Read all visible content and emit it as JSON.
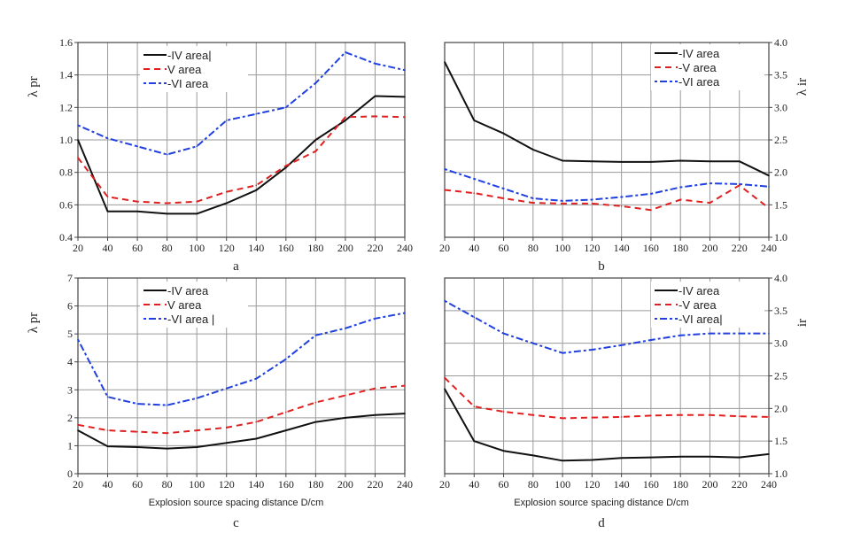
{
  "figure": {
    "x_axis_label": "Explosion source spacing distance D/cm"
  },
  "colors": {
    "IV": "#111111",
    "V": "#e02020",
    "VI": "#2040e0",
    "grid": "#9a9a9a",
    "frame": "#444444"
  },
  "chart_data": [
    {
      "id": "a",
      "type": "line",
      "panel_label": "a",
      "ylabel": "λ pr",
      "y_side": "left",
      "xlim": [
        20,
        240
      ],
      "ylim": [
        0.4,
        1.6
      ],
      "x_ticks": [
        "20",
        "40",
        "60",
        "80",
        "100",
        "120",
        "140",
        "160",
        "180",
        "200",
        "220",
        "240"
      ],
      "y_ticks": [
        "0.4",
        "0.6",
        "0.8",
        "1.0",
        "1.2",
        "1.4",
        "1.6"
      ],
      "grid": true,
      "show_xlabel": false,
      "legend_position": "top-center",
      "x": [
        20,
        40,
        60,
        80,
        100,
        120,
        140,
        160,
        180,
        200,
        220,
        240
      ],
      "series": [
        {
          "key": "IV",
          "name": "-IV area|",
          "style": "solid",
          "values": [
            1.0,
            0.56,
            0.56,
            0.545,
            0.545,
            0.61,
            0.69,
            0.83,
            1.0,
            1.12,
            1.27,
            1.265
          ]
        },
        {
          "key": "V",
          "name": "V area",
          "style": "dashed",
          "values": [
            0.89,
            0.65,
            0.62,
            0.61,
            0.62,
            0.68,
            0.72,
            0.84,
            0.93,
            1.14,
            1.145,
            1.14
          ]
        },
        {
          "key": "VI",
          "name": "-VI area",
          "style": "dashdot",
          "values": [
            1.09,
            1.01,
            0.96,
            0.91,
            0.96,
            1.12,
            1.16,
            1.2,
            1.35,
            1.54,
            1.47,
            1.43
          ]
        }
      ]
    },
    {
      "id": "b",
      "type": "line",
      "panel_label": "b",
      "ylabel": "λ ir",
      "y_side": "right",
      "xlim": [
        20,
        240
      ],
      "ylim": [
        1.0,
        4.0
      ],
      "x_ticks": [
        "20",
        "40",
        "60",
        "80",
        "100",
        "120",
        "140",
        "160",
        "180",
        "200",
        "220",
        "240"
      ],
      "y_ticks": [
        "1.0",
        "1.5",
        "2.0",
        "2.5",
        "3.0",
        "3.5",
        "4.0"
      ],
      "grid": true,
      "show_xlabel": false,
      "legend_position": "top-right",
      "x": [
        20,
        40,
        60,
        80,
        100,
        120,
        140,
        160,
        180,
        200,
        220,
        240
      ],
      "series": [
        {
          "key": "IV",
          "name": "-IV area",
          "style": "solid",
          "values": [
            3.7,
            2.8,
            2.6,
            2.35,
            2.18,
            2.17,
            2.16,
            2.16,
            2.18,
            2.17,
            2.17,
            1.95
          ]
        },
        {
          "key": "V",
          "name": "-V area",
          "style": "dashed",
          "values": [
            1.73,
            1.68,
            1.6,
            1.53,
            1.52,
            1.52,
            1.48,
            1.42,
            1.58,
            1.53,
            1.8,
            1.45
          ]
        },
        {
          "key": "VI",
          "name": "-VI area",
          "style": "dashdot",
          "values": [
            2.05,
            1.9,
            1.75,
            1.6,
            1.56,
            1.58,
            1.62,
            1.67,
            1.77,
            1.83,
            1.82,
            1.78
          ]
        }
      ]
    },
    {
      "id": "c",
      "type": "line",
      "panel_label": "c",
      "ylabel": "λ pr",
      "y_side": "left",
      "xlim": [
        20,
        240
      ],
      "ylim": [
        0,
        7
      ],
      "x_ticks": [
        "20",
        "40",
        "60",
        "80",
        "100",
        "120",
        "140",
        "160",
        "180",
        "200",
        "220",
        "240"
      ],
      "y_ticks": [
        "0",
        "1",
        "2",
        "3",
        "4",
        "5",
        "6",
        "7"
      ],
      "grid": true,
      "show_xlabel": true,
      "legend_position": "top-center",
      "x": [
        20,
        40,
        60,
        80,
        100,
        120,
        140,
        160,
        180,
        200,
        220,
        240
      ],
      "series": [
        {
          "key": "IV",
          "name": "-IV area",
          "style": "solid",
          "values": [
            1.55,
            0.98,
            0.95,
            0.9,
            0.95,
            1.1,
            1.25,
            1.55,
            1.85,
            2.0,
            2.1,
            2.15
          ]
        },
        {
          "key": "V",
          "name": "V area",
          "style": "dashed",
          "values": [
            1.75,
            1.55,
            1.5,
            1.45,
            1.55,
            1.65,
            1.85,
            2.2,
            2.55,
            2.8,
            3.05,
            3.15
          ]
        },
        {
          "key": "VI",
          "name": "-VI area |",
          "style": "dashdot",
          "values": [
            4.8,
            2.75,
            2.5,
            2.45,
            2.7,
            3.05,
            3.4,
            4.1,
            4.95,
            5.2,
            5.55,
            5.75
          ]
        }
      ]
    },
    {
      "id": "d",
      "type": "line",
      "panel_label": "d",
      "ylabel": "ir",
      "y_side": "right",
      "xlim": [
        20,
        240
      ],
      "ylim": [
        1.0,
        4.0
      ],
      "x_ticks": [
        "20",
        "40",
        "60",
        "80",
        "100",
        "120",
        "140",
        "160",
        "180",
        "200",
        "220",
        "240"
      ],
      "y_ticks": [
        "1.0",
        "1.5",
        "2.0",
        "2.5",
        "3.0",
        "3.5",
        "4.0"
      ],
      "grid": true,
      "show_xlabel": true,
      "legend_position": "top-right",
      "x": [
        20,
        40,
        60,
        80,
        100,
        120,
        140,
        160,
        180,
        200,
        220,
        240
      ],
      "series": [
        {
          "key": "IV",
          "name": "-IV area",
          "style": "solid",
          "values": [
            2.3,
            1.5,
            1.35,
            1.28,
            1.2,
            1.21,
            1.24,
            1.25,
            1.26,
            1.26,
            1.25,
            1.3
          ]
        },
        {
          "key": "V",
          "name": "-V area",
          "style": "dashed",
          "values": [
            2.47,
            2.03,
            1.95,
            1.9,
            1.85,
            1.86,
            1.87,
            1.89,
            1.9,
            1.9,
            1.88,
            1.87
          ]
        },
        {
          "key": "VI",
          "name": "-VI area|",
          "style": "dashdot",
          "values": [
            3.65,
            3.4,
            3.15,
            3.0,
            2.85,
            2.9,
            2.97,
            3.05,
            3.12,
            3.15,
            3.15,
            3.15
          ]
        }
      ]
    }
  ]
}
